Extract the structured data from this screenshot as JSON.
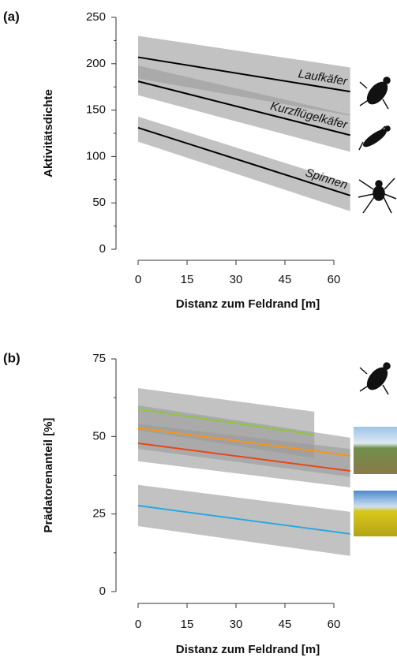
{
  "chart_data": [
    {
      "type": "line",
      "panel_label": "(a)",
      "ylabel": "Aktivitätsdichte",
      "xlabel": "Distanz zum Feldrand [m]",
      "xlim": [
        0,
        60
      ],
      "xticks": [
        0,
        15,
        30,
        45,
        60
      ],
      "ylim": [
        0,
        250
      ],
      "yticks": [
        0,
        50,
        100,
        150,
        200,
        250
      ],
      "series": [
        {
          "name": "Laufkäfer",
          "color": "#000000",
          "x": [
            0,
            65
          ],
          "values": [
            207,
            170
          ],
          "lower": [
            184,
            144
          ],
          "upper": [
            230,
            196
          ]
        },
        {
          "name": "Kurzflügelkäfer",
          "color": "#000000",
          "x": [
            0,
            65
          ],
          "values": [
            181,
            123
          ],
          "lower": [
            166,
            105
          ],
          "upper": [
            198,
            145
          ]
        },
        {
          "name": "Spinnen",
          "color": "#000000",
          "x": [
            0,
            65
          ],
          "values": [
            131,
            58
          ],
          "lower": [
            116,
            41
          ],
          "upper": [
            143,
            71
          ]
        }
      ]
    },
    {
      "type": "line",
      "panel_label": "(b)",
      "ylabel": "Prädatorenanteil [%]",
      "xlabel": "Distanz zum Feldrand [m]",
      "xlim": [
        0,
        60
      ],
      "xticks": [
        0,
        15,
        30,
        45,
        60
      ],
      "ylim": [
        0,
        75
      ],
      "yticks": [
        0,
        25,
        50,
        75
      ],
      "series": [
        {
          "color": "#8dc63f",
          "x": [
            0,
            54
          ],
          "values": [
            58.8,
            50.6
          ],
          "lower": [
            52,
            43
          ],
          "upper": [
            65.6,
            58
          ]
        },
        {
          "color": "#f7941d",
          "x": [
            0,
            65
          ],
          "values": [
            52.7,
            43.8
          ],
          "lower": [
            46,
            37
          ],
          "upper": [
            60,
            49.6
          ]
        },
        {
          "color": "#e8461c",
          "x": [
            0,
            65
          ],
          "values": [
            47.8,
            38.9
          ],
          "lower": [
            42,
            33.6
          ],
          "upper": [
            54,
            46
          ]
        },
        {
          "color": "#29a9e0",
          "x": [
            0,
            65
          ],
          "values": [
            27.7,
            18.6
          ],
          "lower": [
            21.1,
            11.5
          ],
          "upper": [
            34.4,
            25.7
          ]
        }
      ]
    }
  ]
}
